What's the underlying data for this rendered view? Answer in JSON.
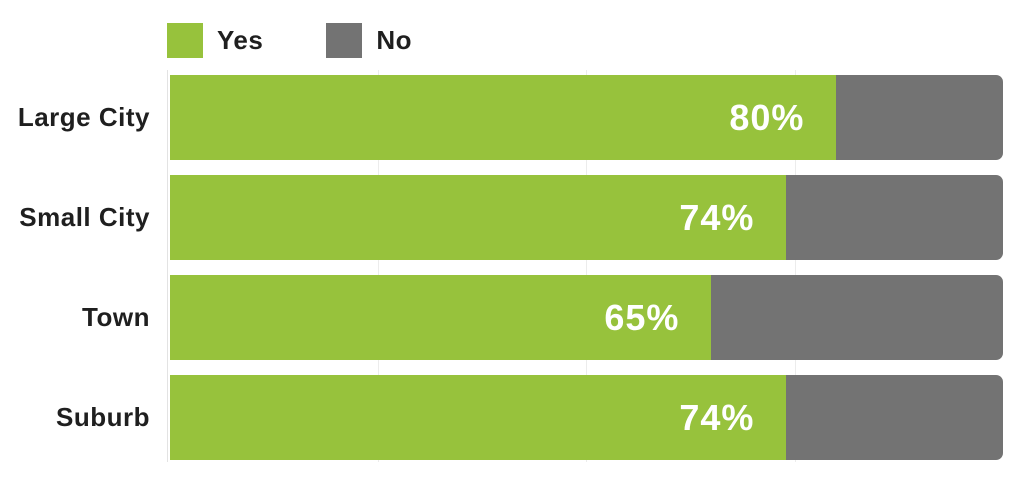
{
  "chart_data": {
    "type": "bar",
    "orientation": "horizontal",
    "stacked": true,
    "title": "",
    "xlabel": "",
    "ylabel": "",
    "xlim": [
      0,
      100
    ],
    "grid": "vertical-faint",
    "gridline_positions_pct": [
      25,
      50,
      75
    ],
    "legend_position": "top",
    "categories": [
      "Large City",
      "Small City",
      "Town",
      "Suburb"
    ],
    "series": [
      {
        "name": "Yes",
        "color": "#97c23c",
        "values": [
          80,
          74,
          65,
          74
        ]
      },
      {
        "name": "No",
        "color": "#737373",
        "values": [
          20,
          26,
          35,
          26
        ]
      }
    ],
    "value_labels": [
      "80%",
      "74%",
      "65%",
      "74%"
    ],
    "value_label_color": "#ffffff"
  },
  "legend": {
    "items": [
      {
        "label": "Yes",
        "color": "#97c23c"
      },
      {
        "label": "No",
        "color": "#737373"
      }
    ]
  },
  "colors": {
    "yes": "#97c23c",
    "no": "#737373",
    "text": "#1f1f1f",
    "background": "#ffffff",
    "gridline": "#ececec"
  }
}
